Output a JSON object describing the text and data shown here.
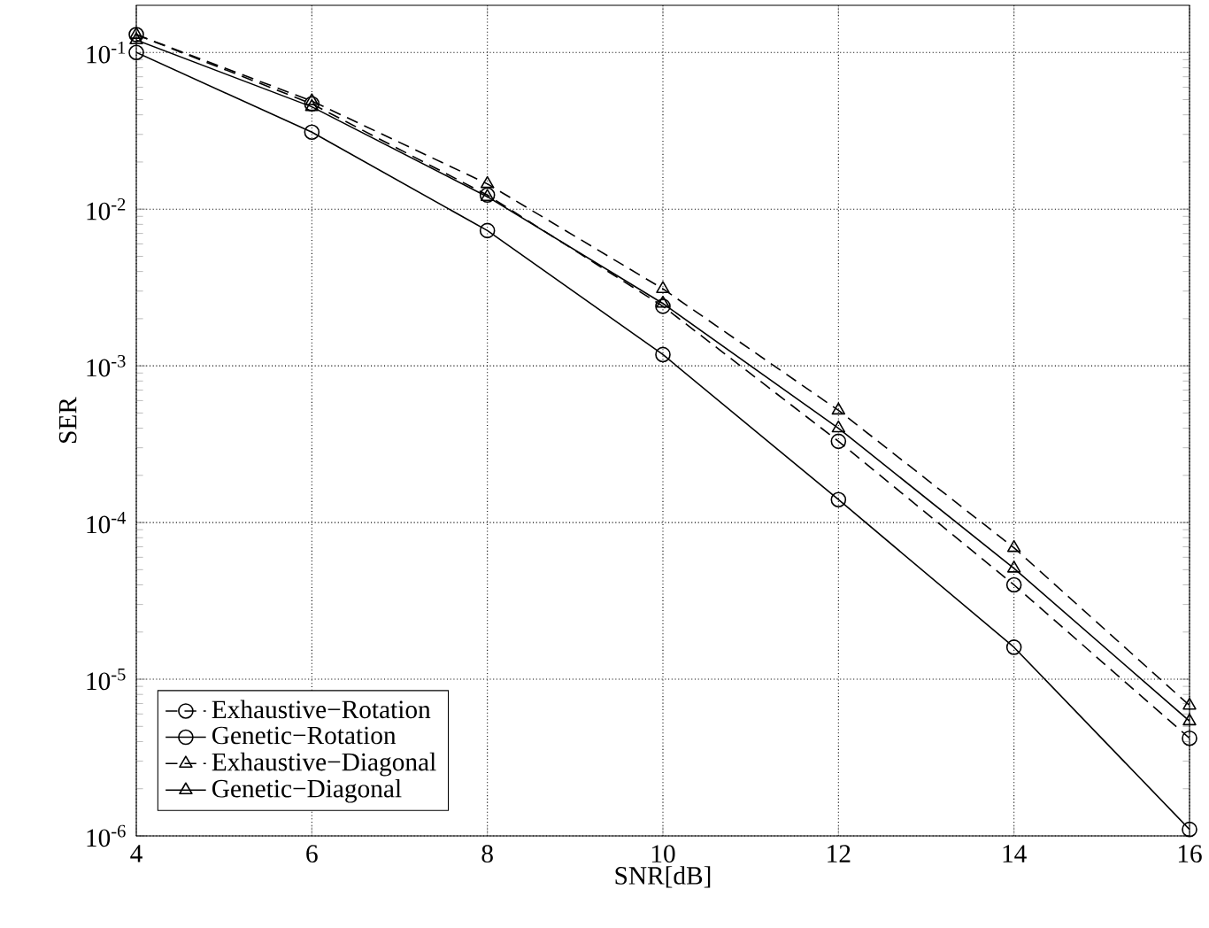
{
  "chart_data": {
    "type": "line",
    "xlabel": "SNR[dB]",
    "ylabel": "SER",
    "x": [
      4,
      6,
      8,
      10,
      12,
      14,
      16
    ],
    "series": [
      {
        "name": "Exhaustive−Rotation",
        "color": "#000000",
        "marker": "circle",
        "line_style": "dashed",
        "values": [
          0.13,
          0.047,
          0.0123,
          0.0024,
          0.00033,
          4e-05,
          4.2e-06
        ]
      },
      {
        "name": "Genetic−Rotation",
        "color": "#000000",
        "marker": "circle",
        "line_style": "solid",
        "values": [
          0.1,
          0.031,
          0.0073,
          0.00118,
          0.00014,
          1.6e-05,
          1.1e-06
        ]
      },
      {
        "name": "Exhaustive−Diagonal",
        "color": "#000000",
        "marker": "triangle",
        "line_style": "dashed",
        "values": [
          0.13,
          0.049,
          0.0145,
          0.0031,
          0.00052,
          6.9e-05,
          6.8e-06
        ]
      },
      {
        "name": "Genetic−Diagonal",
        "color": "#000000",
        "marker": "triangle",
        "line_style": "solid",
        "values": [
          0.12,
          0.045,
          0.012,
          0.0025,
          0.0004,
          5.1e-05,
          5.4e-06
        ]
      }
    ],
    "log": "y",
    "xlim": [
      4,
      16
    ],
    "ylim": [
      1e-06,
      0.2
    ],
    "xticks": [
      4,
      6,
      8,
      10,
      12,
      14,
      16
    ],
    "yticks": [
      {
        "value": 1e-06,
        "label": "10$^{-6}$"
      },
      {
        "value": 1e-05,
        "label": "10$^{-5}$"
      },
      {
        "value": 0.0001,
        "label": "10$^{-4}$"
      },
      {
        "value": 0.001,
        "label": "10$^{-3}$"
      },
      {
        "value": 0.01,
        "label": "10$^{-2}$"
      },
      {
        "value": 0.1,
        "label": "10$^{-1}$"
      }
    ],
    "grid": true,
    "legend": "bottom left"
  }
}
